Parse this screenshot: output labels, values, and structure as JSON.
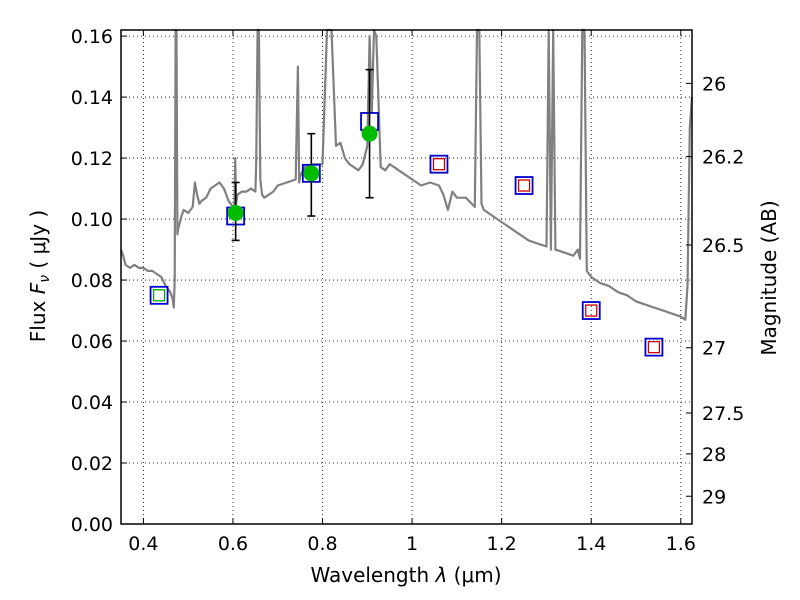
{
  "chart_data": {
    "type": "scatter",
    "xlabel": {
      "prefix": "Wavelength  ",
      "symbol": "λ",
      "units": " (μm)"
    },
    "ylabel": {
      "prefix": "Flux  ",
      "symbol": "F",
      "subscript": "ν",
      "units": "  ( μJy )"
    },
    "ylabel_right": "Magnitude (AB)",
    "xlim": [
      0.35,
      1.625
    ],
    "ylim": [
      0.0,
      0.162
    ],
    "grid": true,
    "x_ticks": [
      {
        "value": 0.4,
        "label": "0.4"
      },
      {
        "value": 0.6,
        "label": "0.6"
      },
      {
        "value": 0.8,
        "label": "0.8"
      },
      {
        "value": 1.0,
        "label": "1"
      },
      {
        "value": 1.2,
        "label": "1.2"
      },
      {
        "value": 1.4,
        "label": "1.4"
      },
      {
        "value": 1.6,
        "label": "1.6"
      }
    ],
    "y_ticks": [
      {
        "value": 0.0,
        "label": "0.00"
      },
      {
        "value": 0.02,
        "label": "0.02"
      },
      {
        "value": 0.04,
        "label": "0.04"
      },
      {
        "value": 0.06,
        "label": "0.06"
      },
      {
        "value": 0.08,
        "label": "0.08"
      },
      {
        "value": 0.1,
        "label": "0.10"
      },
      {
        "value": 0.12,
        "label": "0.12"
      },
      {
        "value": 0.14,
        "label": "0.14"
      },
      {
        "value": 0.16,
        "label": "0.16"
      }
    ],
    "right_ticks": [
      {
        "label": "26",
        "flux": 0.1445
      },
      {
        "label": "26.2",
        "flux": 0.1205
      },
      {
        "label": "26.5",
        "flux": 0.0915
      },
      {
        "label": "27",
        "flux": 0.0578
      },
      {
        "label": "27.5",
        "flux": 0.0364
      },
      {
        "label": "28",
        "flux": 0.023
      },
      {
        "label": "29",
        "flux": 0.0091
      }
    ],
    "series": [
      {
        "kind": "model_spectrum",
        "color": "#808080",
        "x": [
          0.35,
          0.355,
          0.36,
          0.37,
          0.38,
          0.39,
          0.4,
          0.41,
          0.42,
          0.43,
          0.44,
          0.45,
          0.46,
          0.465,
          0.468,
          0.47,
          0.472,
          0.474,
          0.476,
          0.478,
          0.48,
          0.485,
          0.49,
          0.5,
          0.51,
          0.515,
          0.52,
          0.525,
          0.53,
          0.54,
          0.55,
          0.56,
          0.57,
          0.58,
          0.59,
          0.6,
          0.603,
          0.605,
          0.607,
          0.61,
          0.62,
          0.63,
          0.64,
          0.65,
          0.652,
          0.655,
          0.658,
          0.661,
          0.665,
          0.67,
          0.68,
          0.69,
          0.7,
          0.72,
          0.74,
          0.745,
          0.748,
          0.75,
          0.76,
          0.78,
          0.8,
          0.81,
          0.82,
          0.83,
          0.84,
          0.85,
          0.86,
          0.87,
          0.88,
          0.89,
          0.9,
          0.905,
          0.91,
          0.915,
          0.92,
          0.93,
          0.94,
          0.95,
          0.96,
          0.97,
          0.98,
          1.0,
          1.02,
          1.04,
          1.06,
          1.07,
          1.08,
          1.09,
          1.1,
          1.12,
          1.14,
          1.145,
          1.15,
          1.155,
          1.16,
          1.18,
          1.2,
          1.22,
          1.24,
          1.26,
          1.28,
          1.3,
          1.305,
          1.31,
          1.315,
          1.32,
          1.34,
          1.36,
          1.37,
          1.375,
          1.38,
          1.385,
          1.39,
          1.4,
          1.42,
          1.44,
          1.46,
          1.48,
          1.5,
          1.52,
          1.54,
          1.56,
          1.58,
          1.6,
          1.61,
          1.615,
          1.62,
          1.625
        ],
        "y": [
          0.09,
          0.088,
          0.085,
          0.084,
          0.085,
          0.084,
          0.084,
          0.083,
          0.083,
          0.082,
          0.081,
          0.078,
          0.076,
          0.074,
          0.071,
          0.08,
          0.17,
          0.17,
          0.095,
          0.097,
          0.098,
          0.101,
          0.103,
          0.102,
          0.104,
          0.112,
          0.108,
          0.105,
          0.106,
          0.107,
          0.11,
          0.111,
          0.112,
          0.11,
          0.106,
          0.104,
          0.1,
          0.12,
          0.105,
          0.108,
          0.109,
          0.109,
          0.11,
          0.109,
          0.118,
          0.17,
          0.17,
          0.113,
          0.108,
          0.107,
          0.108,
          0.109,
          0.111,
          0.112,
          0.113,
          0.15,
          0.112,
          0.114,
          0.117,
          0.118,
          0.118,
          0.17,
          0.17,
          0.124,
          0.125,
          0.12,
          0.118,
          0.117,
          0.116,
          0.118,
          0.124,
          0.16,
          0.135,
          0.17,
          0.16,
          0.117,
          0.116,
          0.118,
          0.117,
          0.116,
          0.115,
          0.113,
          0.111,
          0.112,
          0.111,
          0.108,
          0.103,
          0.109,
          0.107,
          0.107,
          0.104,
          0.17,
          0.17,
          0.105,
          0.103,
          0.101,
          0.099,
          0.097,
          0.095,
          0.093,
          0.092,
          0.091,
          0.17,
          0.09,
          0.17,
          0.09,
          0.089,
          0.088,
          0.09,
          0.087,
          0.17,
          0.17,
          0.083,
          0.081,
          0.079,
          0.078,
          0.076,
          0.075,
          0.073,
          0.072,
          0.071,
          0.07,
          0.069,
          0.068,
          0.067,
          0.078,
          0.13,
          0.14
        ]
      },
      {
        "kind": "model_photometry",
        "marker": "square",
        "color": "#0000cc",
        "points": [
          {
            "x": 0.435,
            "y": 0.075
          },
          {
            "x": 0.606,
            "y": 0.101
          },
          {
            "x": 0.775,
            "y": 0.115
          },
          {
            "x": 0.905,
            "y": 0.132
          },
          {
            "x": 1.06,
            "y": 0.118
          },
          {
            "x": 1.25,
            "y": 0.111
          },
          {
            "x": 1.4,
            "y": 0.07
          },
          {
            "x": 1.54,
            "y": 0.058
          }
        ]
      },
      {
        "kind": "inner_markers",
        "marker": "square",
        "points": [
          {
            "x": 0.435,
            "y": 0.075,
            "color": "#00aa00"
          },
          {
            "x": 1.06,
            "y": 0.118,
            "color": "#cc0000"
          },
          {
            "x": 1.25,
            "y": 0.111,
            "color": "#cc0000"
          },
          {
            "x": 1.4,
            "y": 0.07,
            "color": "#cc0000"
          },
          {
            "x": 1.54,
            "y": 0.058,
            "color": "#cc0000"
          }
        ]
      },
      {
        "kind": "observed",
        "marker": "circle",
        "color": "#00bb00",
        "points": [
          {
            "x": 0.606,
            "y": 0.102,
            "err_lo": 0.093,
            "err_hi": 0.112
          },
          {
            "x": 0.775,
            "y": 0.115,
            "err_lo": 0.101,
            "err_hi": 0.128
          },
          {
            "x": 0.905,
            "y": 0.128,
            "err_lo": 0.107,
            "err_hi": 0.149
          }
        ]
      }
    ]
  }
}
